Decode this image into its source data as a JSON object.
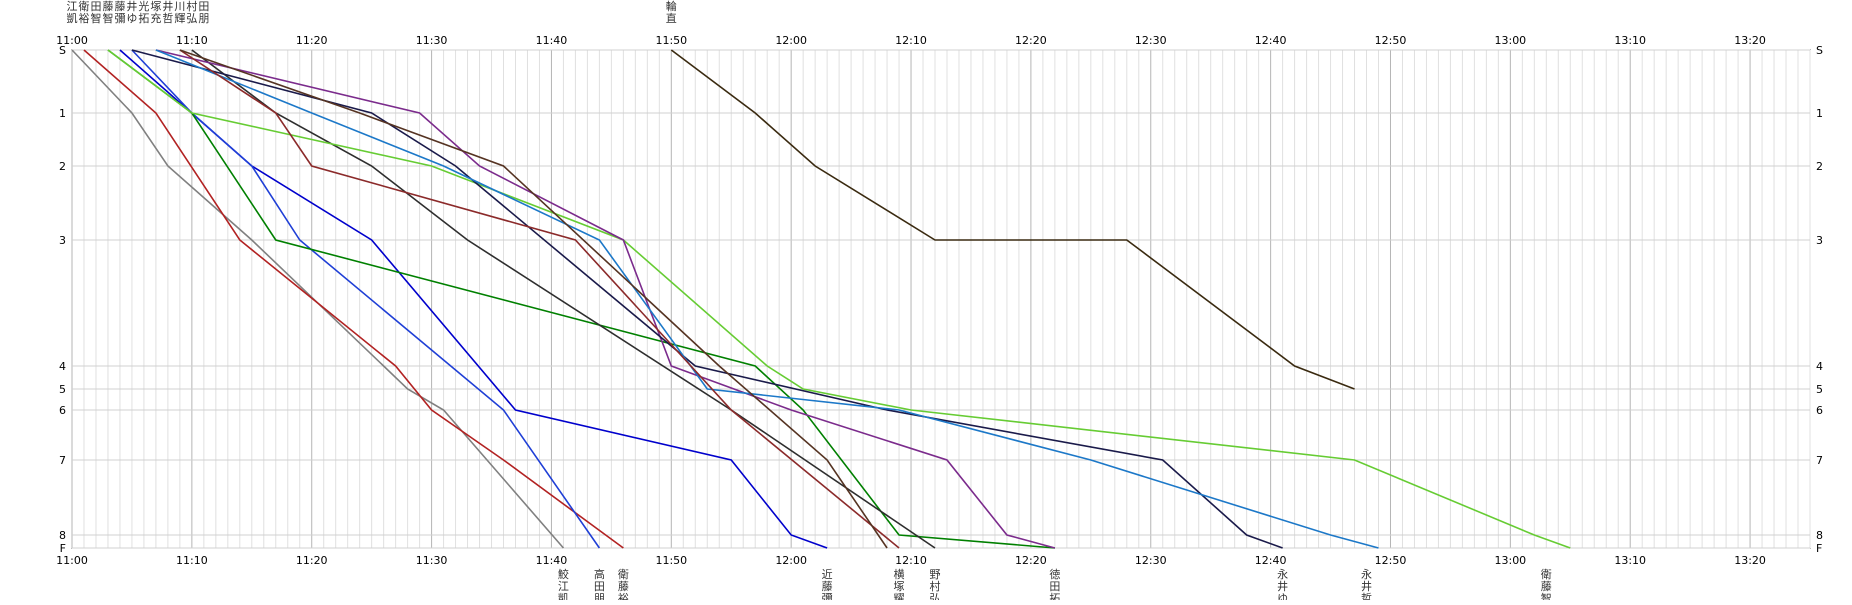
{
  "chart_data": {
    "type": "line",
    "x_unit": "clock time",
    "x_ticks": [
      "11:00",
      "11:10",
      "11:20",
      "11:30",
      "11:40",
      "11:50",
      "12:00",
      "12:10",
      "12:20",
      "12:30",
      "12:40",
      "12:50",
      "13:00",
      "13:10",
      "13:20"
    ],
    "x_range": [
      "11:00",
      "13:25"
    ],
    "y_ticks": [
      "S",
      "1",
      "2",
      "3",
      "4",
      "5",
      "6",
      "7",
      "8",
      "F"
    ],
    "y_levels": [
      0,
      1,
      2,
      3,
      4,
      5,
      6,
      7,
      8,
      9
    ],
    "grid_minor_minutes": 1,
    "grid": true,
    "top_labels": [
      {
        "time": "11:00",
        "name": "鮫江凱"
      },
      {
        "time": "11:01",
        "name": "衛裕"
      },
      {
        "time": "11:02",
        "name": "黒田智"
      },
      {
        "time": "11:03",
        "name": "衛藤智"
      },
      {
        "time": "11:04",
        "name": "近藤彌"
      },
      {
        "time": "11:05",
        "name": "永井ゆ"
      },
      {
        "time": "11:06",
        "name": "徳光拓"
      },
      {
        "time": "11:07",
        "name": "小塚充"
      },
      {
        "time": "11:08",
        "name": "永井哲"
      },
      {
        "time": "11:09",
        "name": "鶴川輝"
      },
      {
        "time": "11:10",
        "name": "野村弘"
      },
      {
        "time": "11:11",
        "name": "高田朋"
      },
      {
        "time": "11:50",
        "name": "三輪直"
      }
    ],
    "bottom_labels": [
      {
        "time": "11:41",
        "name": "鮫江凱"
      },
      {
        "time": "11:44",
        "name": "高田朋"
      },
      {
        "time": "11:46",
        "name": "衛藤裕"
      },
      {
        "time": "12:03",
        "name": "近藤彌"
      },
      {
        "time": "12:09",
        "name": "横塚耀"
      },
      {
        "time": "12:12",
        "name": "野村弘"
      },
      {
        "time": "12:22",
        "name": "徳田拓"
      },
      {
        "time": "12:41",
        "name": "永井ゆ"
      },
      {
        "time": "12:48",
        "name": "永井哲"
      },
      {
        "time": "13:03",
        "name": "衛藤智"
      }
    ],
    "series": [
      {
        "color": "#808080",
        "points": [
          [
            "11:00",
            0
          ],
          [
            "11:05",
            1
          ],
          [
            "11:08",
            2
          ],
          [
            "11:15",
            3
          ],
          [
            "11:26",
            4
          ],
          [
            "11:28",
            5
          ],
          [
            "11:31",
            6
          ],
          [
            "11:41",
            9
          ]
        ]
      },
      {
        "color": "#b22222",
        "points": [
          [
            "11:01",
            0
          ],
          [
            "11:07",
            1
          ],
          [
            "11:14",
            3
          ],
          [
            "11:27",
            4
          ],
          [
            "11:30",
            6
          ],
          [
            "11:36",
            7
          ],
          [
            "11:46",
            9
          ]
        ]
      },
      {
        "color": "#0000cc",
        "points": [
          [
            "11:04",
            0
          ],
          [
            "11:15",
            2
          ],
          [
            "11:25",
            3
          ],
          [
            "11:37",
            6
          ],
          [
            "11:55",
            7
          ],
          [
            "12:00",
            8
          ],
          [
            "12:03",
            9
          ]
        ]
      },
      {
        "color": "#1f3fd6",
        "points": [
          [
            "11:05",
            0
          ],
          [
            "11:10",
            1
          ],
          [
            "11:15",
            2
          ],
          [
            "11:19",
            3
          ],
          [
            "11:36",
            6
          ],
          [
            "11:44",
            9
          ]
        ]
      },
      {
        "color": "#008000",
        "points": [
          [
            "11:03",
            0
          ],
          [
            "11:10",
            1
          ],
          [
            "11:17",
            3
          ],
          [
            "11:57",
            4
          ],
          [
            "12:01",
            6
          ],
          [
            "12:09",
            8
          ],
          [
            "12:22",
            9
          ]
        ]
      },
      {
        "color": "#2e2e2e",
        "points": [
          [
            "11:10",
            0
          ],
          [
            "11:17",
            1
          ],
          [
            "11:25",
            2
          ],
          [
            "11:33",
            3
          ],
          [
            "11:55",
            6
          ],
          [
            "12:12",
            9
          ]
        ]
      },
      {
        "color": "#66cc33",
        "points": [
          [
            "11:03",
            0
          ],
          [
            "11:10",
            1
          ],
          [
            "11:30",
            2
          ],
          [
            "11:46",
            3
          ],
          [
            "11:58",
            4
          ],
          [
            "12:01",
            5
          ],
          [
            "12:10",
            6
          ],
          [
            "12:47",
            7
          ],
          [
            "13:02",
            8
          ],
          [
            "13:05",
            9
          ]
        ]
      },
      {
        "color": "#7b2b8c",
        "points": [
          [
            "11:07",
            0
          ],
          [
            "11:29",
            1
          ],
          [
            "11:34",
            2
          ],
          [
            "11:46",
            3
          ],
          [
            "11:50",
            4
          ],
          [
            "12:00",
            6
          ],
          [
            "12:13",
            7
          ],
          [
            "12:18",
            8
          ],
          [
            "12:22",
            9
          ]
        ]
      },
      {
        "color": "#1a1a4a",
        "points": [
          [
            "11:05",
            0
          ],
          [
            "11:25",
            1
          ],
          [
            "11:32",
            2
          ],
          [
            "11:52",
            4
          ],
          [
            "12:08",
            6
          ],
          [
            "12:31",
            7
          ],
          [
            "12:38",
            8
          ],
          [
            "12:41",
            9
          ]
        ]
      },
      {
        "color": "#1c78c8",
        "points": [
          [
            "11:07",
            0
          ],
          [
            "11:20",
            1
          ],
          [
            "11:31",
            2
          ],
          [
            "11:44",
            3
          ],
          [
            "11:53",
            5
          ],
          [
            "12:09",
            6
          ],
          [
            "12:25",
            7
          ],
          [
            "12:45",
            8
          ],
          [
            "12:49",
            9
          ]
        ]
      },
      {
        "color": "#8b2a2a",
        "points": [
          [
            "11:09",
            0
          ],
          [
            "11:17",
            1
          ],
          [
            "11:20",
            2
          ],
          [
            "11:42",
            3
          ],
          [
            "11:55",
            6
          ],
          [
            "12:09",
            9
          ]
        ]
      },
      {
        "color": "#553322",
        "points": [
          [
            "11:09",
            0
          ],
          [
            "11:24",
            1
          ],
          [
            "11:36",
            2
          ],
          [
            "11:54",
            4
          ],
          [
            "12:03",
            7
          ],
          [
            "12:08",
            9
          ]
        ]
      },
      {
        "color": "#3a2a10",
        "points": [
          [
            "11:50",
            0
          ],
          [
            "11:57",
            1
          ],
          [
            "12:02",
            2
          ],
          [
            "12:12",
            3
          ],
          [
            "12:28",
            3
          ],
          [
            "12:42",
            4
          ],
          [
            "12:47",
            5
          ]
        ]
      }
    ]
  }
}
